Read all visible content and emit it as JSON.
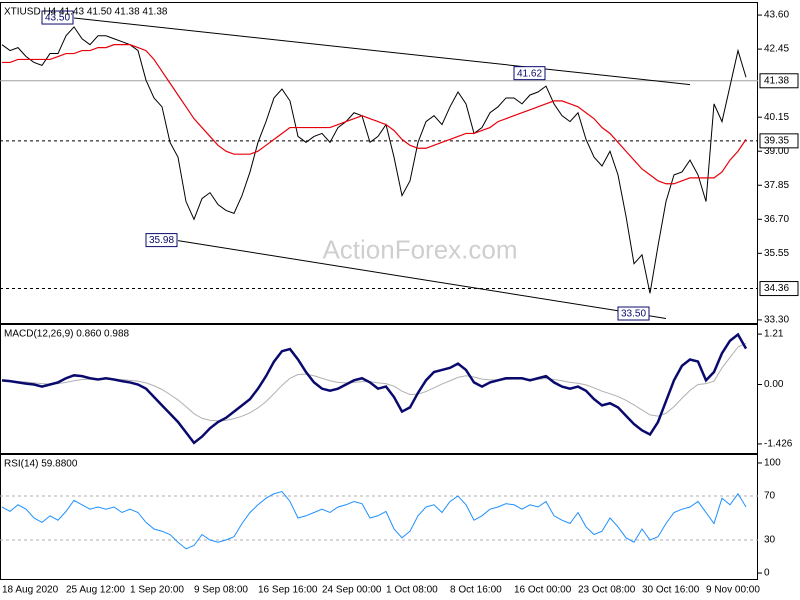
{
  "chart_data": [
    {
      "type": "line",
      "title": "XTIUSD,H4  41.43 41.50 41.38 41.38",
      "watermark": "ActionForex.com",
      "ylim": [
        33.23,
        43.94
      ],
      "yticks": [
        {
          "value": 43.6,
          "label": "43.60"
        },
        42.45,
        40.15,
        {
          "value": 39.0,
          "label": "39.00"
        },
        37.85,
        {
          "value": 36.7,
          "label": "36.70"
        },
        35.55,
        {
          "value": 33.3,
          "label": "33.30"
        }
      ],
      "levels": [
        {
          "value": 41.38,
          "style": "solid",
          "color": "#a0a0a0"
        },
        {
          "value": 39.35,
          "style": "dashed",
          "color": "#000000"
        },
        {
          "value": 34.36,
          "style": "dashed",
          "color": "#000000"
        }
      ],
      "level_label_box": true,
      "trendlines": [
        {
          "x": [
            9,
            86
          ],
          "values": [
            43.5,
            41.25
          ],
          "color": "#000000"
        },
        {
          "x": [
            22,
            83
          ],
          "values": [
            35.98,
            33.35
          ],
          "color": "#000000"
        }
      ],
      "annotations": [
        {
          "x": 9,
          "value": 43.5,
          "label": "43.50"
        },
        {
          "x": 68,
          "value": 41.62,
          "label": "41.62"
        },
        {
          "x": 22,
          "value": 35.98,
          "label": "35.98"
        },
        {
          "x": 81,
          "value": 33.5,
          "label": "33.50"
        }
      ],
      "series": [
        {
          "color": "#000000",
          "width": 1,
          "values": [
            42.6,
            42.4,
            42.5,
            42.2,
            42.0,
            41.9,
            42.3,
            42.3,
            42.9,
            43.2,
            42.8,
            42.6,
            42.9,
            42.9,
            42.8,
            42.7,
            42.6,
            42.4,
            41.4,
            40.8,
            40.5,
            39.3,
            38.8,
            37.3,
            36.7,
            37.4,
            37.6,
            37.2,
            37.0,
            36.9,
            37.5,
            38.3,
            39.3,
            40.0,
            40.8,
            41.1,
            40.7,
            39.5,
            39.3,
            39.5,
            39.6,
            39.3,
            39.8,
            40.0,
            40.3,
            40.2,
            39.3,
            39.5,
            39.9,
            38.8,
            37.5,
            38.0,
            39.3,
            40.0,
            40.2,
            39.9,
            40.5,
            41.0,
            40.6,
            39.6,
            39.8,
            40.3,
            40.5,
            40.8,
            40.8,
            40.6,
            40.9,
            41.0,
            41.2,
            40.6,
            40.2,
            40.0,
            40.3,
            39.4,
            38.8,
            38.5,
            39.0,
            38.2,
            36.8,
            35.2,
            35.5,
            34.2,
            35.8,
            37.3,
            38.2,
            38.3,
            38.7,
            38.2,
            37.3,
            40.6,
            40.0,
            41.2,
            42.4,
            41.5
          ]
        },
        {
          "color": "#e8000b",
          "width": 1.2,
          "values": [
            42.0,
            42.0,
            42.1,
            42.1,
            42.1,
            42.1,
            42.1,
            42.2,
            42.3,
            42.3,
            42.4,
            42.4,
            42.5,
            42.5,
            42.6,
            42.6,
            42.6,
            42.5,
            42.4,
            42.1,
            41.7,
            41.3,
            40.9,
            40.5,
            40.1,
            39.8,
            39.5,
            39.2,
            39.0,
            38.9,
            38.9,
            38.9,
            39.0,
            39.2,
            39.4,
            39.6,
            39.8,
            39.8,
            39.8,
            39.8,
            39.8,
            39.8,
            39.9,
            40.0,
            40.1,
            40.2,
            40.1,
            40.0,
            39.9,
            39.7,
            39.4,
            39.2,
            39.1,
            39.1,
            39.2,
            39.3,
            39.4,
            39.5,
            39.6,
            39.6,
            39.7,
            39.8,
            40.0,
            40.1,
            40.2,
            40.3,
            40.4,
            40.5,
            40.6,
            40.7,
            40.7,
            40.6,
            40.5,
            40.3,
            40.1,
            39.8,
            39.6,
            39.3,
            39.0,
            38.7,
            38.4,
            38.2,
            38.0,
            37.9,
            37.9,
            38.0,
            38.1,
            38.1,
            38.1,
            38.1,
            38.3,
            38.7,
            39.0,
            39.4
          ]
        }
      ]
    },
    {
      "type": "line",
      "title": "MACD(12,26,9) 0.860 0.988",
      "ylim": [
        -1.62,
        1.38
      ],
      "yticks": [
        1.21,
        {
          "value": 0,
          "label": "0.00"
        },
        -1.426
      ],
      "series": [
        {
          "color": "#b0b0b0",
          "width": 1,
          "values": [
            0.08,
            0.08,
            0.07,
            0.06,
            0.04,
            0.02,
            0.01,
            0.02,
            0.05,
            0.09,
            0.12,
            0.13,
            0.13,
            0.13,
            0.13,
            0.12,
            0.1,
            0.08,
            0.04,
            -0.03,
            -0.12,
            -0.24,
            -0.37,
            -0.53,
            -0.7,
            -0.81,
            -0.86,
            -0.87,
            -0.86,
            -0.82,
            -0.76,
            -0.68,
            -0.56,
            -0.41,
            -0.22,
            -0.02,
            0.15,
            0.24,
            0.25,
            0.21,
            0.15,
            0.09,
            0.05,
            0.04,
            0.05,
            0.07,
            0.07,
            0.04,
            0.02,
            -0.04,
            -0.16,
            -0.24,
            -0.23,
            -0.17,
            -0.08,
            0.01,
            0.09,
            0.17,
            0.21,
            0.18,
            0.13,
            0.11,
            0.11,
            0.12,
            0.13,
            0.13,
            0.13,
            0.13,
            0.14,
            0.12,
            0.09,
            0.05,
            0.03,
            -0.01,
            -0.08,
            -0.16,
            -0.22,
            -0.29,
            -0.38,
            -0.49,
            -0.61,
            -0.73,
            -0.76,
            -0.69,
            -0.53,
            -0.33,
            -0.14,
            0.0,
            0.02,
            0.08,
            0.4,
            0.65,
            0.9,
            0.988
          ]
        },
        {
          "color": "#0a0a6e",
          "width": 2.5,
          "values": [
            0.1,
            0.08,
            0.05,
            0.02,
            0.0,
            -0.05,
            0.0,
            0.05,
            0.15,
            0.22,
            0.2,
            0.15,
            0.12,
            0.15,
            0.12,
            0.08,
            0.05,
            0.0,
            -0.1,
            -0.3,
            -0.5,
            -0.7,
            -0.9,
            -1.15,
            -1.4,
            -1.25,
            -1.05,
            -0.9,
            -0.8,
            -0.65,
            -0.5,
            -0.35,
            -0.1,
            0.2,
            0.55,
            0.8,
            0.85,
            0.6,
            0.3,
            0.05,
            -0.1,
            -0.15,
            -0.1,
            0.0,
            0.1,
            0.15,
            0.05,
            -0.1,
            -0.05,
            -0.3,
            -0.65,
            -0.55,
            -0.2,
            0.1,
            0.3,
            0.35,
            0.4,
            0.5,
            0.35,
            0.05,
            -0.05,
            0.05,
            0.1,
            0.15,
            0.15,
            0.15,
            0.1,
            0.15,
            0.2,
            0.05,
            -0.05,
            -0.1,
            -0.05,
            -0.15,
            -0.35,
            -0.5,
            -0.45,
            -0.55,
            -0.75,
            -0.95,
            -1.1,
            -1.2,
            -0.9,
            -0.4,
            0.1,
            0.45,
            0.6,
            0.55,
            0.1,
            0.3,
            0.75,
            1.05,
            1.2,
            0.86
          ]
        }
      ]
    },
    {
      "type": "line",
      "title": "RSI(14) 59.8800",
      "ylim": [
        -4.5,
        105.4
      ],
      "yticks": [
        100,
        0
      ],
      "levels": [
        {
          "value": 70,
          "style": "dashed",
          "color": "#b0b0b0"
        },
        {
          "value": 30,
          "style": "dashed",
          "color": "#b0b0b0"
        }
      ],
      "level_label_box": false,
      "categories": [
        "18 Aug 2020",
        null,
        null,
        null,
        null,
        null,
        null,
        null,
        "25 Aug 12:00",
        null,
        null,
        null,
        null,
        null,
        null,
        null,
        "1 Sep 20:00",
        null,
        null,
        null,
        null,
        null,
        null,
        null,
        "9 Sep 08:00",
        null,
        null,
        null,
        null,
        null,
        null,
        null,
        "16 Sep 16:00",
        null,
        null,
        null,
        null,
        null,
        null,
        null,
        "24 Sep 00:00",
        null,
        null,
        null,
        null,
        null,
        null,
        null,
        "1 Oct 08:00",
        null,
        null,
        null,
        null,
        null,
        null,
        null,
        "8 Oct 16:00",
        null,
        null,
        null,
        null,
        null,
        null,
        null,
        "16 Oct 00:00",
        null,
        null,
        null,
        null,
        null,
        null,
        null,
        "23 Oct 08:00",
        null,
        null,
        null,
        null,
        null,
        null,
        null,
        "30 Oct 16:00",
        null,
        null,
        null,
        null,
        null,
        null,
        null,
        "9 Nov 00:00",
        null,
        null,
        null,
        null,
        null
      ],
      "series": [
        {
          "color": "#1e90ff",
          "width": 1,
          "values": [
            60,
            56,
            62,
            58,
            50,
            46,
            52,
            48,
            56,
            66,
            62,
            58,
            60,
            58,
            60,
            55,
            58,
            55,
            46,
            40,
            38,
            35,
            28,
            22,
            25,
            35,
            30,
            28,
            30,
            33,
            45,
            55,
            62,
            68,
            72,
            74,
            65,
            50,
            52,
            55,
            58,
            55,
            60,
            62,
            65,
            63,
            50,
            52,
            56,
            40,
            32,
            38,
            52,
            60,
            62,
            55,
            65,
            70,
            62,
            48,
            52,
            58,
            60,
            63,
            62,
            58,
            62,
            60,
            65,
            52,
            48,
            45,
            55,
            42,
            35,
            38,
            50,
            42,
            32,
            28,
            40,
            30,
            33,
            45,
            55,
            58,
            60,
            65,
            55,
            45,
            68,
            62,
            72,
            60
          ]
        }
      ]
    }
  ]
}
